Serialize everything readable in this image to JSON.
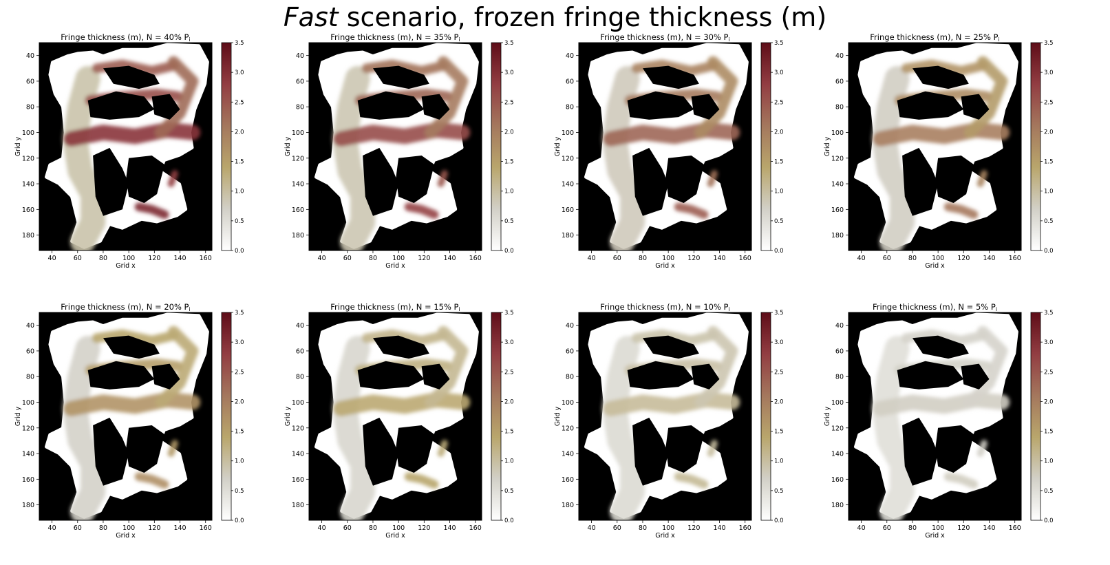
{
  "figure": {
    "title_emphasis": "Fast",
    "title_rest": " scenario, frozen fringe thickness (m)"
  },
  "colorbar": {
    "ticks": [
      "0.0",
      "0.5",
      "1.0",
      "1.5",
      "2.0",
      "2.5",
      "3.0",
      "3.5"
    ],
    "colors": [
      "#ffffff",
      "#d2d0c7",
      "#b9a66c",
      "#a4775d",
      "#923d42",
      "#5e0d18"
    ]
  },
  "chart_data": [
    {
      "type": "heatmap",
      "title": "Fringe thickness (m), N = 40% P",
      "title_sub": "i",
      "xlabel": "Grid x",
      "ylabel": "Grid y",
      "xticks": [
        "40",
        "60",
        "80",
        "100",
        "120",
        "140",
        "160"
      ],
      "yticks": [
        "40",
        "60",
        "80",
        "100",
        "120",
        "140",
        "160",
        "180"
      ],
      "xlim": [
        30,
        165
      ],
      "ylim": [
        192,
        30
      ],
      "vmin": 0.0,
      "vmax": 3.5,
      "pressure_percent": 40,
      "colorbar_label": ""
    },
    {
      "type": "heatmap",
      "title": "Fringe thickness (m), N = 35% P",
      "title_sub": "i",
      "xlabel": "Grid x",
      "ylabel": "Grid y",
      "xticks": [
        "40",
        "60",
        "80",
        "100",
        "120",
        "140",
        "160"
      ],
      "yticks": [
        "40",
        "60",
        "80",
        "100",
        "120",
        "140",
        "160",
        "180"
      ],
      "xlim": [
        30,
        165
      ],
      "ylim": [
        192,
        30
      ],
      "vmin": 0.0,
      "vmax": 3.5,
      "pressure_percent": 35,
      "colorbar_label": ""
    },
    {
      "type": "heatmap",
      "title": "Fringe thickness (m), N = 30% P",
      "title_sub": "i",
      "xlabel": "Grid x",
      "ylabel": "Grid y",
      "xticks": [
        "40",
        "60",
        "80",
        "100",
        "120",
        "140",
        "160"
      ],
      "yticks": [
        "40",
        "60",
        "80",
        "100",
        "120",
        "140",
        "160",
        "180"
      ],
      "xlim": [
        30,
        165
      ],
      "ylim": [
        192,
        30
      ],
      "vmin": 0.0,
      "vmax": 3.5,
      "pressure_percent": 30,
      "colorbar_label": ""
    },
    {
      "type": "heatmap",
      "title": "Fringe thickness (m), N = 25% P",
      "title_sub": "i",
      "xlabel": "Grid x",
      "ylabel": "Grid y",
      "xticks": [
        "40",
        "60",
        "80",
        "100",
        "120",
        "140",
        "160"
      ],
      "yticks": [
        "40",
        "60",
        "80",
        "100",
        "120",
        "140",
        "160",
        "180"
      ],
      "xlim": [
        30,
        165
      ],
      "ylim": [
        192,
        30
      ],
      "vmin": 0.0,
      "vmax": 3.5,
      "pressure_percent": 25,
      "colorbar_label": ""
    },
    {
      "type": "heatmap",
      "title": "Fringe thickness (m), N = 20% P",
      "title_sub": "i",
      "xlabel": "Grid x",
      "ylabel": "Grid y",
      "xticks": [
        "40",
        "60",
        "80",
        "100",
        "120",
        "140",
        "160"
      ],
      "yticks": [
        "40",
        "60",
        "80",
        "100",
        "120",
        "140",
        "160",
        "180"
      ],
      "xlim": [
        30,
        165
      ],
      "ylim": [
        192,
        30
      ],
      "vmin": 0.0,
      "vmax": 3.5,
      "pressure_percent": 20,
      "colorbar_label": ""
    },
    {
      "type": "heatmap",
      "title": "Fringe thickness (m), N = 15% P",
      "title_sub": "i",
      "xlabel": "Grid x",
      "ylabel": "Grid y",
      "xticks": [
        "40",
        "60",
        "80",
        "100",
        "120",
        "140",
        "160"
      ],
      "yticks": [
        "40",
        "60",
        "80",
        "100",
        "120",
        "140",
        "160",
        "180"
      ],
      "xlim": [
        30,
        165
      ],
      "ylim": [
        192,
        30
      ],
      "vmin": 0.0,
      "vmax": 3.5,
      "pressure_percent": 15,
      "colorbar_label": ""
    },
    {
      "type": "heatmap",
      "title": "Fringe thickness (m), N = 10% P",
      "title_sub": "i",
      "xlabel": "Grid x",
      "ylabel": "Grid y",
      "xticks": [
        "40",
        "60",
        "80",
        "100",
        "120",
        "140",
        "160"
      ],
      "yticks": [
        "40",
        "60",
        "80",
        "100",
        "120",
        "140",
        "160",
        "180"
      ],
      "xlim": [
        30,
        165
      ],
      "ylim": [
        192,
        30
      ],
      "vmin": 0.0,
      "vmax": 3.5,
      "pressure_percent": 10,
      "colorbar_label": ""
    },
    {
      "type": "heatmap",
      "title": "Fringe thickness (m), N = 5% P",
      "title_sub": "i",
      "xlabel": "Grid x",
      "ylabel": "Grid y",
      "xticks": [
        "40",
        "60",
        "80",
        "100",
        "120",
        "140",
        "160"
      ],
      "yticks": [
        "40",
        "60",
        "80",
        "100",
        "120",
        "140",
        "160",
        "180"
      ],
      "xlim": [
        30,
        165
      ],
      "ylim": [
        192,
        30
      ],
      "vmin": 0.0,
      "vmax": 3.5,
      "pressure_percent": 5,
      "colorbar_label": ""
    }
  ]
}
